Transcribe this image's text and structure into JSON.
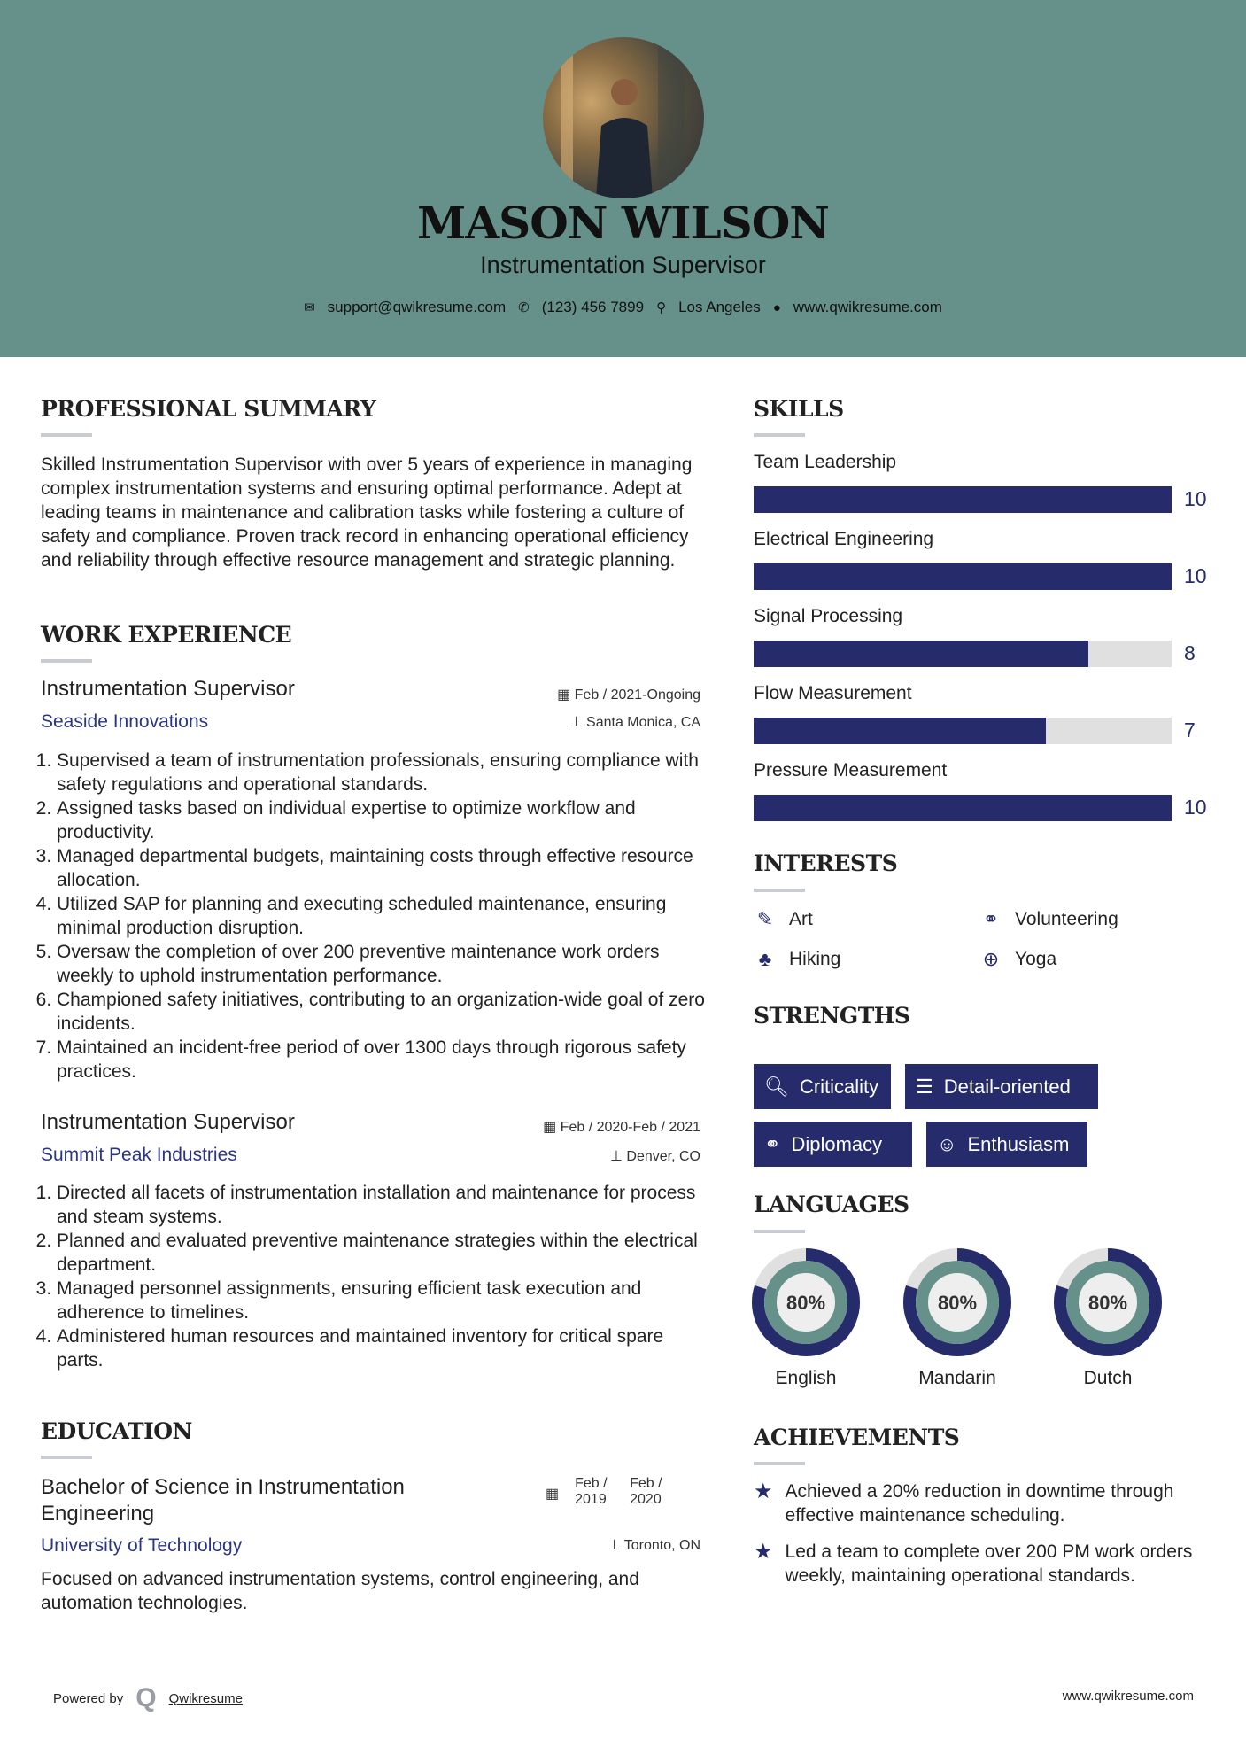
{
  "header": {
    "name": "MASON WILSON",
    "title": "Instrumentation Supervisor",
    "contacts": [
      {
        "icon": "envelope-icon",
        "text": "support@qwikresume.com"
      },
      {
        "icon": "phone-icon",
        "text": "(123) 456 7899"
      },
      {
        "icon": "map-marker-icon",
        "text": "Los Angeles"
      },
      {
        "icon": "globe-icon",
        "text": "www.qwikresume.com"
      }
    ]
  },
  "summary": {
    "heading": "PROFESSIONAL SUMMARY",
    "text": "Skilled Instrumentation Supervisor with over 5 years of experience in managing complex instrumentation systems and ensuring optimal performance. Adept at leading teams in maintenance and calibration tasks while fostering a culture of safety and compliance. Proven track record in enhancing operational efficiency and reliability through effective resource management and strategic planning."
  },
  "experience": {
    "heading": "WORK EXPERIENCE",
    "jobs": [
      {
        "title": "Instrumentation Supervisor",
        "dates": "Feb / 2021-Ongoing",
        "company": "Seaside Innovations",
        "location": "Santa Monica, CA",
        "bullets": [
          "Supervised a team of instrumentation professionals, ensuring compliance with safety regulations and operational standards.",
          "Assigned tasks based on individual expertise to optimize workflow and productivity.",
          "Managed departmental budgets, maintaining costs through effective resource allocation.",
          "Utilized SAP for planning and executing scheduled maintenance, ensuring minimal production disruption.",
          "Oversaw the completion of over 200 preventive maintenance work orders weekly to uphold instrumentation performance.",
          "Championed safety initiatives, contributing to an organization-wide goal of zero incidents.",
          "Maintained an incident-free period of over 1300 days through rigorous safety practices."
        ]
      },
      {
        "title": "Instrumentation Supervisor",
        "dates": "Feb / 2020-Feb / 2021",
        "company": "Summit Peak Industries",
        "location": "Denver, CO",
        "bullets": [
          "Directed all facets of instrumentation installation and maintenance for process and steam systems.",
          "Planned and evaluated preventive maintenance strategies within the electrical department.",
          "Managed personnel assignments, ensuring efficient task execution and adherence to timelines.",
          "Administered human resources and maintained inventory for critical spare parts."
        ]
      }
    ]
  },
  "education": {
    "heading": "EDUCATION",
    "degree": "Bachelor of Science in Instrumentation Engineering",
    "start": "Feb / 2019",
    "end": "Feb / 2020",
    "school": "University of Technology",
    "location": "Toronto, ON",
    "description": "Focused on advanced instrumentation systems, control engineering, and automation technologies."
  },
  "skills": {
    "heading": "SKILLS",
    "max": 10,
    "items": [
      {
        "label": "Team Leadership",
        "value": 10
      },
      {
        "label": "Electrical Engineering",
        "value": 10
      },
      {
        "label": "Signal Processing",
        "value": 8
      },
      {
        "label": "Flow Measurement",
        "value": 7
      },
      {
        "label": "Pressure Measurement",
        "value": 10
      }
    ]
  },
  "interests": {
    "heading": "INTERESTS",
    "items": [
      {
        "label": "Art",
        "icon": "paintbrush-icon"
      },
      {
        "label": "Volunteering",
        "icon": "handshake-icon"
      },
      {
        "label": "Hiking",
        "icon": "tree-icon"
      },
      {
        "label": "Yoga",
        "icon": "lifebuoy-icon"
      }
    ]
  },
  "strengths": {
    "heading": "STRENGTHS",
    "items": [
      {
        "label": "Criticality",
        "icon": "search-icon"
      },
      {
        "label": "Detail-oriented",
        "icon": "list-icon"
      },
      {
        "label": "Diplomacy",
        "icon": "handshake-icon"
      },
      {
        "label": "Enthusiasm",
        "icon": "smile-icon"
      }
    ]
  },
  "languages": {
    "heading": "LANGUAGES",
    "items": [
      {
        "label": "English",
        "percent": 80,
        "text": "80%"
      },
      {
        "label": "Mandarin",
        "percent": 80,
        "text": "80%"
      },
      {
        "label": "Dutch",
        "percent": 80,
        "text": "80%"
      }
    ]
  },
  "achievements": {
    "heading": "ACHIEVEMENTS",
    "items": [
      "Achieved a 20% reduction in downtime through effective maintenance scheduling.",
      "Led a team to complete over 200 PM work orders weekly, maintaining operational standards."
    ]
  },
  "footer": {
    "powered_by": "Powered by",
    "brand": "Qwikresume",
    "site": "www.qwikresume.com"
  },
  "colors": {
    "header_bg": "#66918a",
    "accent": "#252b6b",
    "company": "#2b3582",
    "track": "#e0e0e0"
  }
}
